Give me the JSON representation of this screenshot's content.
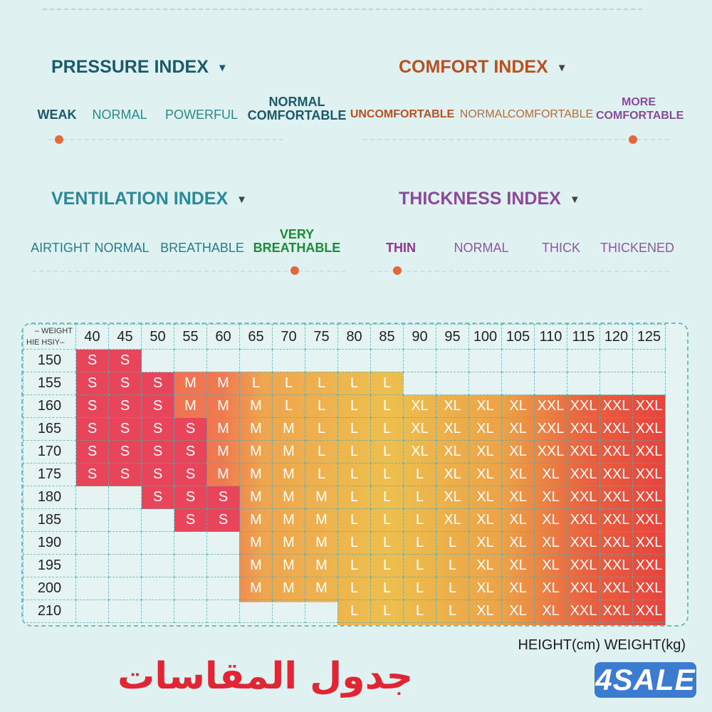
{
  "pressure": {
    "title": "PRESSURE INDEX",
    "color": "#1a5a6a",
    "options": [
      "WEAK",
      "NORMAL",
      "POWERFUL",
      "NORMAL COMFORTABLE"
    ],
    "selected": "WEAK"
  },
  "comfort": {
    "title": "COMFORT INDEX",
    "color": "#b8501f",
    "options": [
      "UNCOMFORTABLE",
      "NORMAL",
      "COMFORTABLE",
      "MORE COMFORTABLE"
    ],
    "selected": "MORE COMFORTABLE"
  },
  "ventilation": {
    "title": "VENTILATION INDEX",
    "color": "#2a8a9a",
    "options": [
      "AIRTIGHT",
      "NORMAL",
      "BREATHABLE",
      "VERY BREATHABLE"
    ],
    "selected": "VERY BREATHABLE",
    "selected_color": "#1f8a3a"
  },
  "thickness": {
    "title": "THICKNESS INDEX",
    "color": "#8a4a9a",
    "options": [
      "THIN",
      "NORMAL",
      "THICK",
      "THICKENED"
    ],
    "selected": "THIN"
  },
  "size_table": {
    "corner_weight_label": "– WEIGHT",
    "corner_height_label": "HIE HSIY–",
    "weights": [
      "40",
      "45",
      "50",
      "55",
      "60",
      "65",
      "70",
      "75",
      "80",
      "85",
      "90",
      "95",
      "100",
      "105",
      "110",
      "115",
      "120",
      "125"
    ],
    "rows": [
      {
        "height": "150",
        "sizes": [
          "S",
          "S",
          "",
          "",
          "",
          "",
          "",
          "",
          "",
          "",
          "",
          "",
          "",
          "",
          "",
          "",
          "",
          ""
        ]
      },
      {
        "height": "155",
        "sizes": [
          "S",
          "S",
          "S",
          "M",
          "M",
          "L",
          "L",
          "L",
          "L",
          "L",
          "",
          "",
          "",
          "",
          "",
          "",
          "",
          ""
        ]
      },
      {
        "height": "160",
        "sizes": [
          "S",
          "S",
          "S",
          "M",
          "M",
          "M",
          "L",
          "L",
          "L",
          "L",
          "XL",
          "XL",
          "XL",
          "XL",
          "XXL",
          "XXL",
          "XXL",
          "XXL"
        ]
      },
      {
        "height": "165",
        "sizes": [
          "S",
          "S",
          "S",
          "S",
          "M",
          "M",
          "M",
          "L",
          "L",
          "L",
          "XL",
          "XL",
          "XL",
          "XL",
          "XXL",
          "XXL",
          "XXL",
          "XXL"
        ]
      },
      {
        "height": "170",
        "sizes": [
          "S",
          "S",
          "S",
          "S",
          "M",
          "M",
          "M",
          "L",
          "L",
          "L",
          "XL",
          "XL",
          "XL",
          "XL",
          "XXL",
          "XXL",
          "XXL",
          "XXL"
        ]
      },
      {
        "height": "175",
        "sizes": [
          "S",
          "S",
          "S",
          "S",
          "M",
          "M",
          "M",
          "L",
          "L",
          "L",
          "L",
          "XL",
          "XL",
          "XL",
          "XL",
          "XXL",
          "XXL",
          "XXL"
        ]
      },
      {
        "height": "180",
        "sizes": [
          "",
          "",
          "S",
          "S",
          "S",
          "M",
          "M",
          "M",
          "L",
          "L",
          "L",
          "XL",
          "XL",
          "XL",
          "XL",
          "XXL",
          "XXL",
          "XXL"
        ]
      },
      {
        "height": "185",
        "sizes": [
          "",
          "",
          "",
          "S",
          "S",
          "M",
          "M",
          "M",
          "L",
          "L",
          "L",
          "XL",
          "XL",
          "XL",
          "XL",
          "XXL",
          "XXL",
          "XXL"
        ]
      },
      {
        "height": "190",
        "sizes": [
          "",
          "",
          "",
          "",
          "",
          "M",
          "M",
          "M",
          "L",
          "L",
          "L",
          "L",
          "XL",
          "XL",
          "XL",
          "XXL",
          "XXL",
          "XXL"
        ]
      },
      {
        "height": "195",
        "sizes": [
          "",
          "",
          "",
          "",
          "",
          "M",
          "M",
          "M",
          "L",
          "L",
          "L",
          "L",
          "XL",
          "XL",
          "XL",
          "XXL",
          "XXL",
          "XXL"
        ]
      },
      {
        "height": "200",
        "sizes": [
          "",
          "",
          "",
          "",
          "",
          "M",
          "M",
          "M",
          "L",
          "L",
          "L",
          "L",
          "XL",
          "XL",
          "XL",
          "XXL",
          "XXL",
          "XXL"
        ]
      },
      {
        "height": "210",
        "sizes": [
          "",
          "",
          "",
          "",
          "",
          "",
          "",
          "",
          "L",
          "L",
          "L",
          "L",
          "XL",
          "XL",
          "XL",
          "XXL",
          "XXL",
          "XXL"
        ]
      }
    ]
  },
  "units_label": "HEIGHT(cm) WEIGHT(kg)",
  "arabic_title": "جدول المقاسات",
  "watermark": "4SALE"
}
